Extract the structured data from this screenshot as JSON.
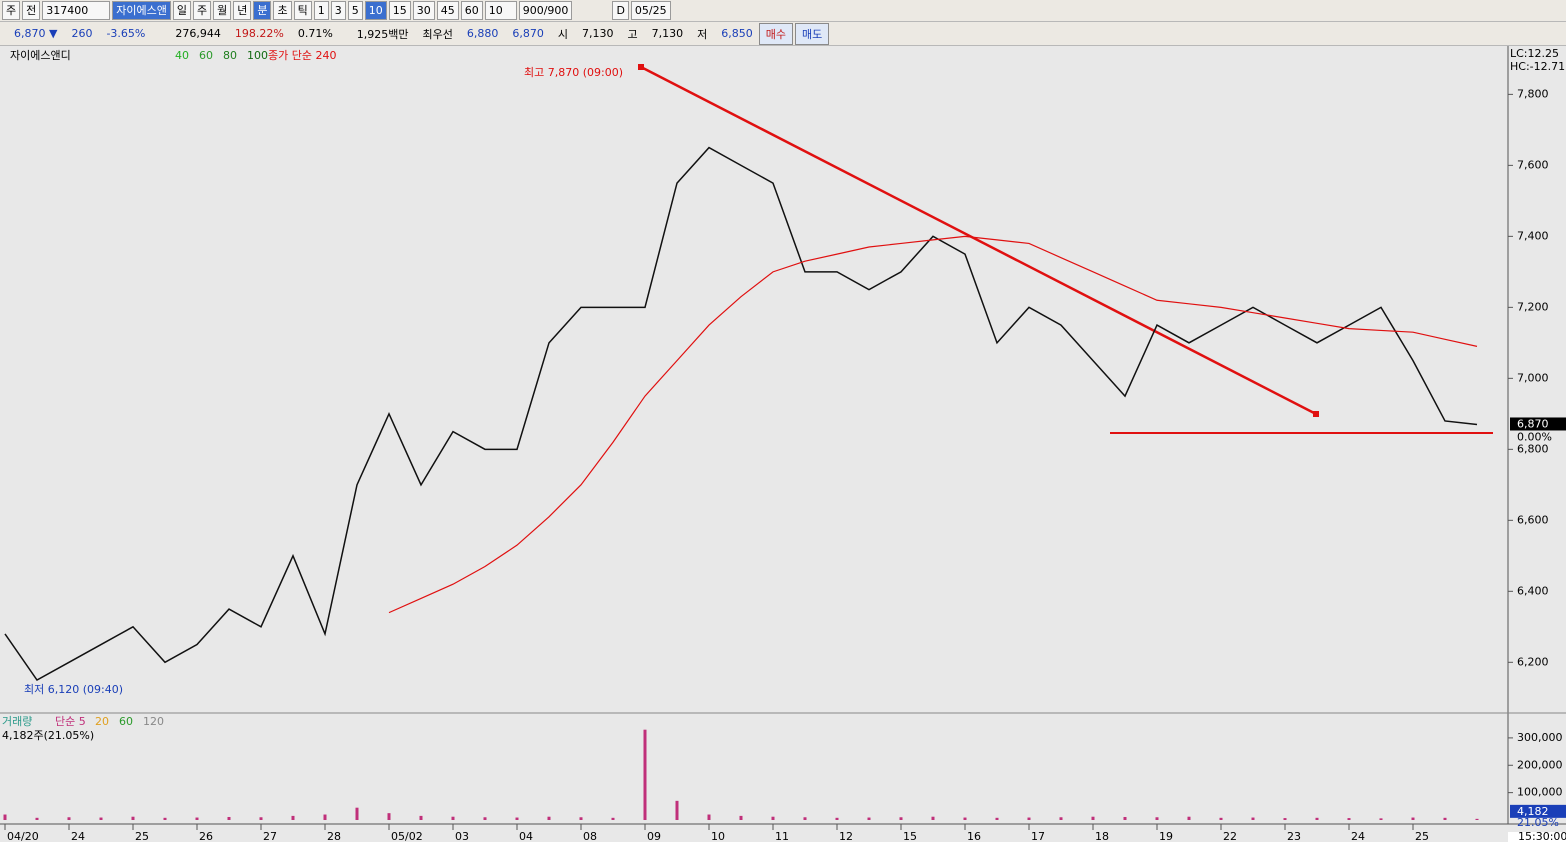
{
  "toolbar": {
    "items": [
      "주",
      "전",
      "317400",
      "자이에스앤",
      "일",
      "주",
      "월",
      "년",
      "분",
      "초",
      "틱",
      "1",
      "3",
      "5",
      "10",
      "15",
      "30",
      "45",
      "60",
      "10",
      "900/900",
      "D",
      "05/25"
    ]
  },
  "quote": {
    "items": [
      "6,870 ▼",
      "260",
      "-3.65%",
      "276,944",
      "198.22%",
      "0.71%",
      "1,925백만",
      "최우선",
      "6,880",
      "6,870",
      "시",
      "7,130",
      "고",
      "7,130",
      "저",
      "6,850"
    ],
    "buy": "매수",
    "sell": "매도"
  },
  "chart_data": {
    "type": "line",
    "title": "자이에스앤디",
    "ma_labels": [
      "40",
      "60",
      "80",
      "100"
    ],
    "high_label": "최고 7,870 (09:00)",
    "low_label": "최저 6,120 (09:40)",
    "lc": "LC:12.25",
    "hc": "HC:-12.71",
    "last_label": "6,870",
    "change_label": "0.00%",
    "time_label": "15:30:00",
    "categories": [
      "04/20",
      null,
      "24",
      null,
      "25",
      null,
      "26",
      null,
      "27",
      null,
      "28",
      null,
      "05/02",
      null,
      "03",
      null,
      "04",
      null,
      "08",
      null,
      "09",
      null,
      "10",
      null,
      "11",
      null,
      "12",
      null,
      "15",
      null,
      "16",
      null,
      "17",
      null,
      "18",
      null,
      "19",
      null,
      "22",
      null,
      "23",
      null,
      "24",
      null,
      "25",
      null,
      null
    ],
    "series": [
      {
        "name": "자이에스앤디",
        "color": "#111111",
        "values": [
          6280,
          6150,
          6200,
          6250,
          6300,
          6200,
          6250,
          6350,
          6300,
          6500,
          6280,
          6700,
          6900,
          6700,
          6850,
          6800,
          6800,
          7100,
          7200,
          7200,
          7200,
          7550,
          7650,
          7600,
          7550,
          7300,
          7300,
          7250,
          7300,
          7400,
          7350,
          7100,
          7200,
          7150,
          7050,
          6950,
          7150,
          7100,
          7150,
          7200,
          7150,
          7100,
          7150,
          7200,
          7050,
          6880,
          6870
        ]
      },
      {
        "name": "종가 단순 240",
        "color": "#e01010",
        "values": [
          null,
          null,
          null,
          null,
          null,
          null,
          null,
          null,
          null,
          null,
          null,
          null,
          6340,
          6380,
          6420,
          6470,
          6530,
          6610,
          6700,
          6820,
          6950,
          7050,
          7150,
          7230,
          7300,
          7330,
          7350,
          7370,
          7380,
          7390,
          7400,
          7390,
          7380,
          7340,
          7300,
          7260,
          7220,
          7210,
          7200,
          7185,
          7170,
          7155,
          7140,
          7135,
          7130,
          7110,
          7090
        ]
      }
    ],
    "ylim": [
      6060,
      7925
    ],
    "yticks": [
      {
        "value": 6200,
        "label": "6,200"
      },
      {
        "value": 6400,
        "label": "6,400"
      },
      {
        "value": 6600,
        "label": "6,600"
      },
      {
        "value": 6800,
        "label": "6,800"
      },
      {
        "value": 7000,
        "label": "7,000"
      },
      {
        "value": 7200,
        "label": "7,200"
      },
      {
        "value": 7400,
        "label": "7,400"
      },
      {
        "value": 7600,
        "label": "7,600"
      },
      {
        "value": 7800,
        "label": "7,800"
      }
    ],
    "volume": {
      "title": "거래량",
      "ma_labels": [
        "단순 5",
        "20",
        "60",
        "120"
      ],
      "info": "4,182주(21.05%)",
      "color": "#c0307a",
      "values": [
        20000,
        8000,
        10000,
        9000,
        12000,
        8000,
        9000,
        11000,
        10000,
        15000,
        20000,
        45000,
        25000,
        15000,
        12000,
        10000,
        9000,
        12000,
        10000,
        8000,
        330000,
        70000,
        20000,
        15000,
        12000,
        10000,
        8000,
        9000,
        10000,
        12000,
        9000,
        8000,
        9000,
        10000,
        12000,
        11000,
        10000,
        12000,
        8000,
        9000,
        7000,
        8000,
        7000,
        6000,
        9000,
        8000,
        4182
      ],
      "ylim": [
        0,
        380000
      ],
      "yticks": [
        {
          "value": 100000,
          "label": "100,000"
        },
        {
          "value": 200000,
          "label": "200,000"
        },
        {
          "value": 300000,
          "label": "300,000"
        }
      ],
      "last_label": "4,182",
      "pct_label": "21.05%"
    }
  }
}
